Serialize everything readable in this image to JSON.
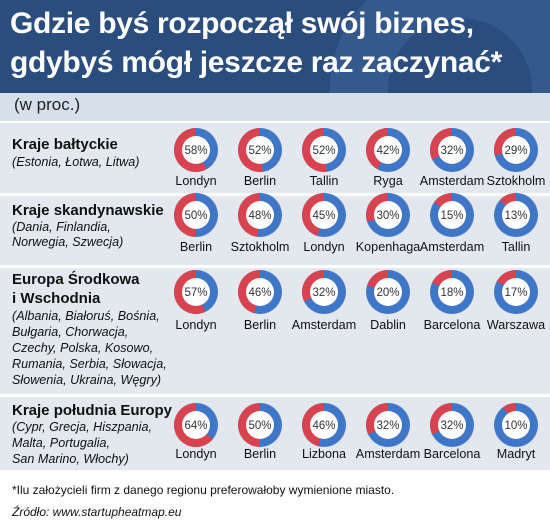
{
  "title_line1": "Gdzie byś rozpoczął swój biznes,",
  "title_line2": "gdybyś mógł jeszcze raz zaczynać*",
  "subtitle": "(w proc.)",
  "colors": {
    "header": "#2b4d7e",
    "primary": "#d9434f",
    "secondary": "#3f76c7",
    "panel": "#e3e8ef"
  },
  "regions": [
    {
      "name": "Kraje bałtyckie",
      "desc": [
        "(Estonia, Łotwa, Litwa)"
      ]
    },
    {
      "name": "Kraje skandynawskie",
      "desc": [
        "(Dania, Finlandia,",
        "Norwegia, Szwecja)"
      ]
    },
    {
      "name": "Europa Środkowa",
      "name2": "i Wschodnia",
      "desc": [
        "(Albania, Białoruś, Bośnia,",
        "Bułgaria, Chorwacja,",
        "Czechy, Polska, Kosowo,",
        "Rumania, Serbia, Słowacja,",
        "Słowenia, Ukraina, Węgry)"
      ]
    },
    {
      "name": "Kraje południa Europy",
      "desc": [
        "(Cypr, Grecja, Hiszpania,",
        "Malta, Portugalia,",
        "San Marino, Włochy)"
      ]
    }
  ],
  "chart_data": [
    {
      "type": "pie",
      "region": "Kraje bałtyckie",
      "categories": [
        "Londyn",
        "Berlin",
        "Tallin",
        "Ryga",
        "Amsterdam",
        "Sztokholm"
      ],
      "values": [
        58,
        52,
        52,
        42,
        32,
        29
      ],
      "labels": [
        "58%",
        "52%",
        "52%",
        "42%",
        "32%",
        "29%"
      ]
    },
    {
      "type": "pie",
      "region": "Kraje skandynawskie",
      "categories": [
        "Berlin",
        "Sztokholm",
        "Londyn",
        "Kopenhaga",
        "Amsterdam",
        "Tallin"
      ],
      "values": [
        50,
        48,
        45,
        30,
        15,
        13
      ],
      "labels": [
        "50%",
        "48%",
        "45%",
        "30%",
        "15%",
        "13%"
      ]
    },
    {
      "type": "pie",
      "region": "Europa Środkowa i Wschodnia",
      "categories": [
        "Londyn",
        "Berlin",
        "Amsterdam",
        "Dablin",
        "Barcelona",
        "Warszawa"
      ],
      "values": [
        57,
        46,
        32,
        20,
        18,
        17
      ],
      "labels": [
        "57%",
        "46%",
        "32%",
        "20%",
        "18%",
        "17%"
      ]
    },
    {
      "type": "pie",
      "region": "Kraje południa Europy",
      "categories": [
        "Londyn",
        "Berlin",
        "Lizbona",
        "Amsterdam",
        "Barcelona",
        "Madryt"
      ],
      "values": [
        64,
        50,
        46,
        32,
        32,
        10
      ],
      "labels": [
        "64%",
        "50%",
        "46%",
        "32%",
        "32%",
        "10%"
      ]
    }
  ],
  "footnote": "*Ilu założycieli firm z danego regionu preferowałoby wymienione miasto.",
  "source": "Źródło: www.startupheatmap.eu"
}
